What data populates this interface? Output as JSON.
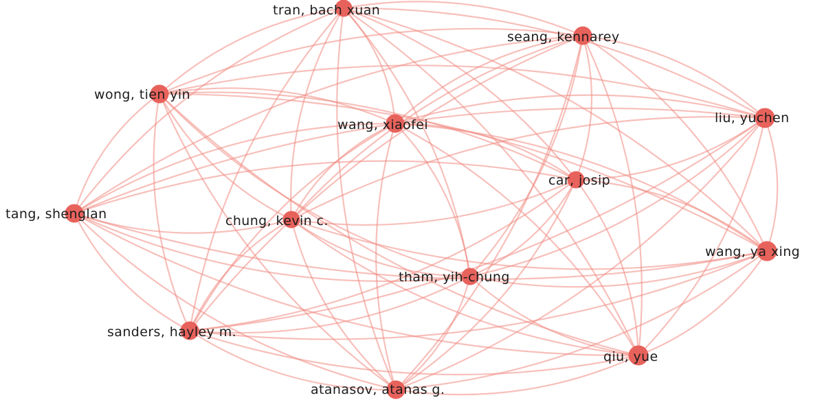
{
  "network": {
    "colors": {
      "node": "#e8625c",
      "edge": "#f08a82",
      "label": "#1c1c1c",
      "background": "#ffffff"
    },
    "nodes": [
      {
        "id": "tran",
        "label": "tran, bach xuan"
      },
      {
        "id": "seang",
        "label": "seang, kennarey"
      },
      {
        "id": "wong",
        "label": "wong, tien yin"
      },
      {
        "id": "xiaofei",
        "label": "wang, xiaofei"
      },
      {
        "id": "liu",
        "label": "liu, yuchen"
      },
      {
        "id": "car",
        "label": "car, josip"
      },
      {
        "id": "tang",
        "label": "tang, shenglan"
      },
      {
        "id": "chung",
        "label": "chung, kevin c."
      },
      {
        "id": "yaxing",
        "label": "wang, ya xing"
      },
      {
        "id": "tham",
        "label": "tham, yih-chung"
      },
      {
        "id": "sanders",
        "label": "sanders, hayley m."
      },
      {
        "id": "qiu",
        "label": "qiu, yue"
      },
      {
        "id": "atanasov",
        "label": "atanasov, atanas g."
      }
    ],
    "edges": [
      [
        "tran",
        "seang"
      ],
      [
        "tran",
        "wong"
      ],
      [
        "tran",
        "xiaofei"
      ],
      [
        "tran",
        "liu"
      ],
      [
        "tran",
        "car"
      ],
      [
        "tran",
        "tang"
      ],
      [
        "tran",
        "chung"
      ],
      [
        "tran",
        "yaxing"
      ],
      [
        "tran",
        "tham"
      ],
      [
        "tran",
        "sanders"
      ],
      [
        "tran",
        "qiu"
      ],
      [
        "tran",
        "atanasov"
      ],
      [
        "seang",
        "wong"
      ],
      [
        "seang",
        "xiaofei"
      ],
      [
        "seang",
        "liu"
      ],
      [
        "seang",
        "car"
      ],
      [
        "seang",
        "tang"
      ],
      [
        "seang",
        "chung"
      ],
      [
        "seang",
        "yaxing"
      ],
      [
        "seang",
        "tham"
      ],
      [
        "seang",
        "sanders"
      ],
      [
        "seang",
        "qiu"
      ],
      [
        "seang",
        "atanasov"
      ],
      [
        "wong",
        "xiaofei"
      ],
      [
        "wong",
        "liu"
      ],
      [
        "wong",
        "car"
      ],
      [
        "wong",
        "tang"
      ],
      [
        "wong",
        "chung"
      ],
      [
        "wong",
        "yaxing"
      ],
      [
        "wong",
        "tham"
      ],
      [
        "wong",
        "sanders"
      ],
      [
        "wong",
        "qiu"
      ],
      [
        "wong",
        "atanasov"
      ],
      [
        "xiaofei",
        "liu"
      ],
      [
        "xiaofei",
        "car"
      ],
      [
        "xiaofei",
        "tang"
      ],
      [
        "xiaofei",
        "chung"
      ],
      [
        "xiaofei",
        "yaxing"
      ],
      [
        "xiaofei",
        "tham"
      ],
      [
        "xiaofei",
        "sanders"
      ],
      [
        "xiaofei",
        "qiu"
      ],
      [
        "xiaofei",
        "atanasov"
      ],
      [
        "liu",
        "car"
      ],
      [
        "liu",
        "tang"
      ],
      [
        "liu",
        "chung"
      ],
      [
        "liu",
        "yaxing"
      ],
      [
        "liu",
        "tham"
      ],
      [
        "liu",
        "sanders"
      ],
      [
        "liu",
        "qiu"
      ],
      [
        "liu",
        "atanasov"
      ],
      [
        "car",
        "tang"
      ],
      [
        "car",
        "chung"
      ],
      [
        "car",
        "yaxing"
      ],
      [
        "car",
        "tham"
      ],
      [
        "car",
        "sanders"
      ],
      [
        "car",
        "qiu"
      ],
      [
        "car",
        "atanasov"
      ],
      [
        "tang",
        "chung"
      ],
      [
        "tang",
        "yaxing"
      ],
      [
        "tang",
        "tham"
      ],
      [
        "tang",
        "sanders"
      ],
      [
        "tang",
        "qiu"
      ],
      [
        "tang",
        "atanasov"
      ],
      [
        "chung",
        "yaxing"
      ],
      [
        "chung",
        "tham"
      ],
      [
        "chung",
        "sanders"
      ],
      [
        "chung",
        "qiu"
      ],
      [
        "chung",
        "atanasov"
      ],
      [
        "yaxing",
        "tham"
      ],
      [
        "yaxing",
        "sanders"
      ],
      [
        "yaxing",
        "qiu"
      ],
      [
        "yaxing",
        "atanasov"
      ],
      [
        "tham",
        "sanders"
      ],
      [
        "tham",
        "qiu"
      ],
      [
        "tham",
        "atanasov"
      ],
      [
        "sanders",
        "qiu"
      ],
      [
        "sanders",
        "atanasov"
      ],
      [
        "qiu",
        "atanasov"
      ]
    ]
  }
}
